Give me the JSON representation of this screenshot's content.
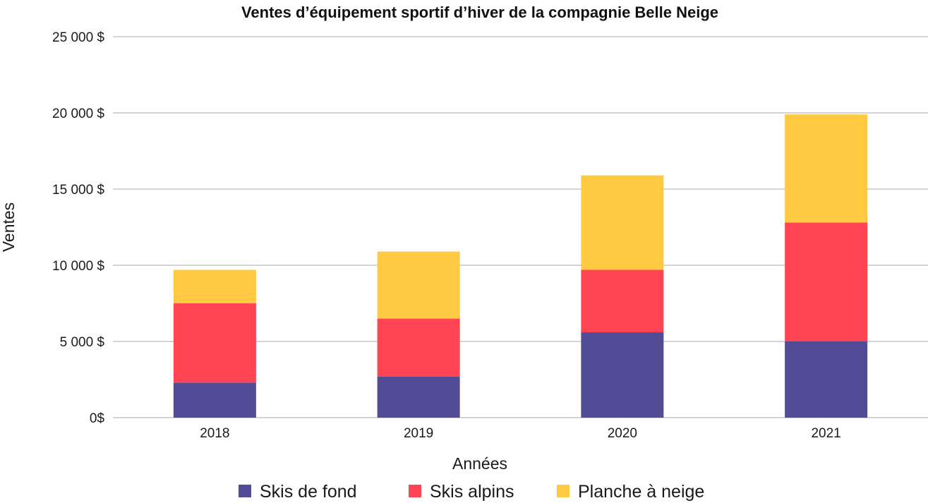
{
  "chart_data": {
    "type": "bar",
    "stacked": true,
    "title": "Ventes d’équipement sportif d’hiver de la compagnie Belle Neige",
    "xlabel": "Années",
    "ylabel": "Ventes",
    "categories": [
      "2018",
      "2019",
      "2020",
      "2021"
    ],
    "series": [
      {
        "name": "Skis de fond",
        "color": "#524c96",
        "values": [
          2300,
          2700,
          5600,
          5000
        ]
      },
      {
        "name": "Skis alpins",
        "color": "#ff4553",
        "values": [
          5200,
          3800,
          4100,
          7800
        ]
      },
      {
        "name": "Planche à neige",
        "color": "#ffca42",
        "values": [
          2200,
          4400,
          6200,
          7100
        ]
      }
    ],
    "ylim": [
      0,
      25000
    ],
    "yticks": [
      0,
      5000,
      10000,
      15000,
      20000,
      25000
    ],
    "ytick_labels": [
      "0$",
      "5 000 $",
      "10 000 $",
      "15 000 $",
      "20 000 $",
      "25 000 $"
    ],
    "grid": true,
    "legend_position": "bottom"
  }
}
